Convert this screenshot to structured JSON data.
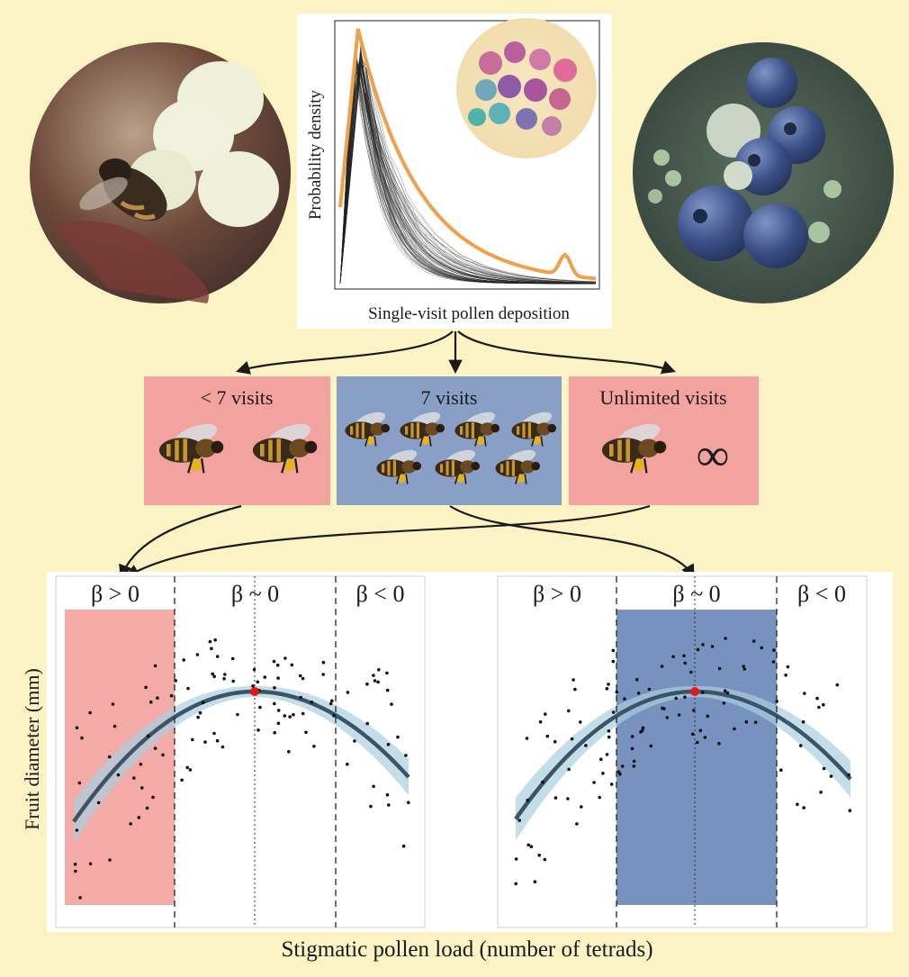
{
  "top_panel": {
    "xlabel": "Single-visit pollen deposition",
    "ylabel": "Probability density"
  },
  "scenarios": [
    {
      "id": "few",
      "label": "< 7 visits",
      "color": "#f3a39f",
      "bees": 2
    },
    {
      "id": "seven",
      "label": "7 visits",
      "color": "#8a9fc6",
      "bees": 7
    },
    {
      "id": "unlimited",
      "label": "Unlimited visits",
      "color": "#f3a39f",
      "bees": 1,
      "extra_symbol": "∞"
    }
  ],
  "bottom": {
    "ylabel": "Fruit diameter (mm)",
    "xlabel": "Stigmatic pollen load (number of tetrads)",
    "zone_labels": [
      "β > 0",
      "β ~ 0",
      "β < 0"
    ],
    "highlight_colors": {
      "left": "#f29b98",
      "right": "#5f7fb3"
    },
    "curve_color": "#3d5366",
    "band_color": "#a9cfe0",
    "optimum_color": "#e01818"
  },
  "colors": {
    "background": "#fbf3c3",
    "highlight_curve": "#f0a04b"
  }
}
